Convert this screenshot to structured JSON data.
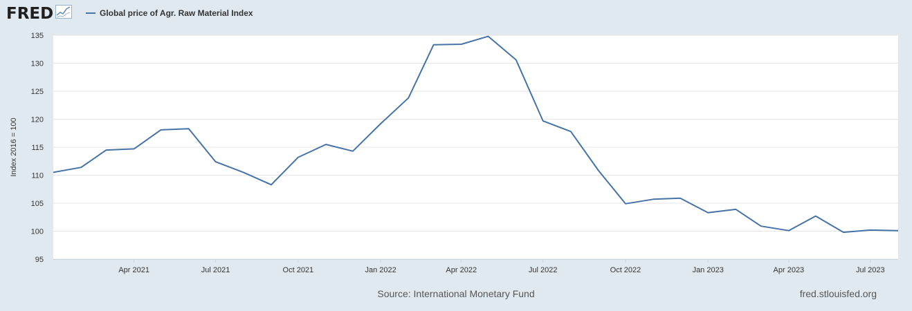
{
  "logo": {
    "text": "FRED",
    "icon": "chart-line-icon"
  },
  "legend": {
    "label": "Global price of Agr. Raw Material Index"
  },
  "colors": {
    "series": "#4572a7",
    "background": "#e1e9f0",
    "plot": "#ffffff",
    "grid": "#e6e6e6"
  },
  "footer": {
    "source": "Source: International Monetary Fund",
    "site": "fred.stlouisfed.org"
  },
  "chart_data": {
    "type": "line",
    "ylabel": "Index 2016 = 100",
    "ylim": [
      95,
      135
    ],
    "yticks": [
      95,
      100,
      105,
      110,
      115,
      120,
      125,
      130,
      135
    ],
    "xlim": [
      "2021-01-01",
      "2023-08-01"
    ],
    "xticks": [
      {
        "date": "2021-04-01",
        "label": "Apr 2021"
      },
      {
        "date": "2021-07-01",
        "label": "Jul 2021"
      },
      {
        "date": "2021-10-01",
        "label": "Oct 2021"
      },
      {
        "date": "2022-01-01",
        "label": "Jan 2022"
      },
      {
        "date": "2022-04-01",
        "label": "Apr 2022"
      },
      {
        "date": "2022-07-01",
        "label": "Jul 2022"
      },
      {
        "date": "2022-10-01",
        "label": "Oct 2022"
      },
      {
        "date": "2023-01-01",
        "label": "Jan 2023"
      },
      {
        "date": "2023-04-01",
        "label": "Apr 2023"
      },
      {
        "date": "2023-07-01",
        "label": "Jul 2023"
      }
    ],
    "grid": true,
    "series": [
      {
        "name": "Global price of Agr. Raw Material Index",
        "x": [
          "2021-01-01",
          "2021-02-01",
          "2021-03-01",
          "2021-04-01",
          "2021-05-01",
          "2021-06-01",
          "2021-07-01",
          "2021-08-01",
          "2021-09-01",
          "2021-10-01",
          "2021-11-01",
          "2021-12-01",
          "2022-01-01",
          "2022-02-01",
          "2022-03-01",
          "2022-04-01",
          "2022-05-01",
          "2022-06-01",
          "2022-07-01",
          "2022-08-01",
          "2022-09-01",
          "2022-10-01",
          "2022-11-01",
          "2022-12-01",
          "2023-01-01",
          "2023-02-01",
          "2023-03-01",
          "2023-04-01",
          "2023-05-01",
          "2023-06-01",
          "2023-07-01",
          "2023-08-01"
        ],
        "values": [
          110.5,
          111.4,
          114.5,
          114.7,
          118.1,
          118.3,
          112.4,
          110.5,
          108.3,
          113.2,
          115.5,
          114.3,
          119.2,
          123.8,
          133.3,
          133.4,
          134.8,
          130.6,
          119.7,
          117.8,
          110.8,
          104.9,
          105.7,
          105.9,
          103.3,
          103.9,
          100.9,
          100.1,
          102.7,
          99.8,
          100.2,
          100.1
        ]
      }
    ]
  }
}
